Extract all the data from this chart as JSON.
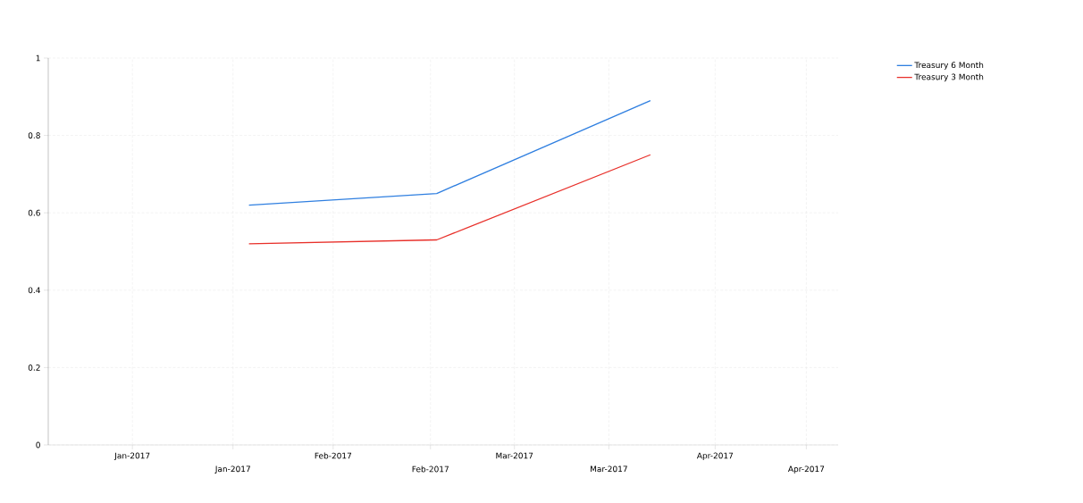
{
  "chart_data": {
    "type": "line",
    "x": [
      "2017-01-19",
      "2017-02-17",
      "2017-03-22"
    ],
    "series": [
      {
        "name": "Treasury 6 Month",
        "color": "#2f7fe0",
        "values": [
          0.62,
          0.65,
          0.89
        ]
      },
      {
        "name": "Treasury 3 Month",
        "color": "#e8302a",
        "values": [
          0.52,
          0.53,
          0.75
        ]
      }
    ],
    "xlim": [
      "2016-12-19",
      "2017-04-20"
    ],
    "xticks": [
      {
        "value": "2017-01-01",
        "label": "Jan-2017"
      },
      {
        "value": "2017-02-01",
        "label": "Feb-2017"
      },
      {
        "value": "2017-03-01",
        "label": "Mar-2017"
      },
      {
        "value": "2017-04-01",
        "label": "Apr-2017"
      }
    ],
    "x2lim": [
      "2016-12-03",
      "2017-04-06"
    ],
    "x2ticks": [
      {
        "value": "2017-01-01",
        "label": "Jan-2017"
      },
      {
        "value": "2017-02-01",
        "label": "Feb-2017"
      },
      {
        "value": "2017-03-01",
        "label": "Mar-2017"
      },
      {
        "value": "2017-04-01",
        "label": "Apr-2017"
      }
    ],
    "ylim": [
      0,
      1
    ],
    "yticks": [
      0,
      0.2,
      0.4,
      0.6,
      0.8,
      1
    ],
    "grid": true,
    "legend": "top right",
    "marker": "none",
    "line_style": "solid"
  }
}
